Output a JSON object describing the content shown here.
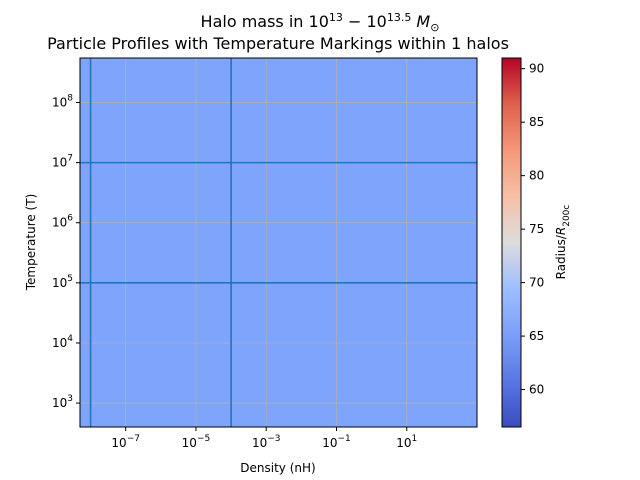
{
  "chart_data": {
    "type": "heatmap",
    "title_line1_prefix": "Halo mass in 10",
    "title_line1_exp1": "13",
    "title_line1_mid": " − 10",
    "title_line1_exp2": "13.5",
    "title_line1_tail": "M",
    "title_line1_tail_sub": "⊙",
    "title_line2": "Particle Profiles with Temperature Markings within 1 halos",
    "xlabel": "Density (nH)",
    "ylabel": "Temperature (T)",
    "xscale": "log",
    "yscale": "log",
    "xlim": [
      5e-09,
      1000
    ],
    "ylim": [
      400,
      550000000
    ],
    "xticks": [
      {
        "value": 1e-07,
        "base": "10",
        "exp": "−7"
      },
      {
        "value": 1e-05,
        "base": "10",
        "exp": "−5"
      },
      {
        "value": 0.001,
        "base": "10",
        "exp": "−3"
      },
      {
        "value": 0.1,
        "base": "10",
        "exp": "−1"
      },
      {
        "value": 10,
        "base": "10",
        "exp": "1"
      }
    ],
    "yticks": [
      {
        "value": 1000,
        "base": "10",
        "exp": "3"
      },
      {
        "value": 10000,
        "base": "10",
        "exp": "4"
      },
      {
        "value": 100000,
        "base": "10",
        "exp": "5"
      },
      {
        "value": 1000000,
        "base": "10",
        "exp": "6"
      },
      {
        "value": 10000000,
        "base": "10",
        "exp": "7"
      },
      {
        "value": 100000000,
        "base": "10",
        "exp": "8"
      }
    ],
    "fill_value": 65.2,
    "fill_color": "#7fa4fc",
    "vlines": [
      1e-08,
      0.0001
    ],
    "hlines": [
      100000,
      10000000
    ],
    "marker_line_color": "#1f77b4",
    "grid": true,
    "colorbar": {
      "label_prefix": "Radius/",
      "label_var": "R",
      "label_sub": "200c",
      "range": [
        56.5,
        91
      ],
      "ticks": [
        {
          "value": 60,
          "label": "60"
        },
        {
          "value": 65,
          "label": "65"
        },
        {
          "value": 70,
          "label": "70"
        },
        {
          "value": 75,
          "label": "75"
        },
        {
          "value": 80,
          "label": "80"
        },
        {
          "value": 85,
          "label": "85"
        },
        {
          "value": 90,
          "label": "90"
        }
      ],
      "colormap": "coolwarm"
    }
  }
}
